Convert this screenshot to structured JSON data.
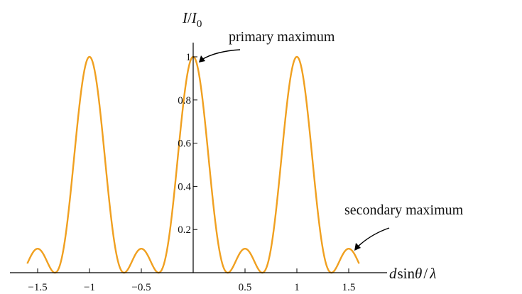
{
  "chart_data": {
    "type": "line",
    "title": "",
    "xlabel": "d sinθ / λ",
    "ylabel": "I/I₀",
    "xlim": [
      -1.62,
      1.62
    ],
    "ylim": [
      0,
      1.05
    ],
    "x_ticks": [
      {
        "value": -1.5,
        "label": "−1.5"
      },
      {
        "value": -1,
        "label": "−1"
      },
      {
        "value": -0.5,
        "label": "−0.5"
      },
      {
        "value": 0.5,
        "label": "0.5"
      },
      {
        "value": 1,
        "label": "1"
      },
      {
        "value": 1.5,
        "label": "1.5"
      }
    ],
    "y_ticks": [
      {
        "value": 0.2,
        "label": "0.2"
      },
      {
        "value": 0.4,
        "label": "0.4"
      },
      {
        "value": 0.6,
        "label": "0.6"
      },
      {
        "value": 0.8,
        "label": "0.8"
      },
      {
        "value": 1,
        "label": "1"
      }
    ],
    "grid": false,
    "series": [
      {
        "function": "three-slit interference: (sin(3πx)/(3 sin(πx)))²",
        "color": "#f0a020",
        "x": [
          -1.6,
          -1.5,
          -1.333,
          -1.0,
          -0.667,
          -0.5,
          -0.333,
          0.0,
          0.333,
          0.5,
          0.667,
          1.0,
          1.333,
          1.5,
          1.6
        ],
        "values": [
          0.041,
          0.111,
          0.0,
          1.0,
          0.0,
          0.111,
          0.0,
          1.0,
          0.0,
          0.111,
          0.0,
          1.0,
          0.0,
          0.111,
          0.041
        ]
      }
    ],
    "annotations": [
      {
        "text": "primary maximum",
        "x": 0.0,
        "y": 1.0
      },
      {
        "text": "secondary maximum",
        "x": 1.5,
        "y": 0.111
      }
    ],
    "x_axis_label": {
      "main": "d",
      "func": "sin",
      "theta": "θ",
      "slash": "/",
      "lambda": "λ"
    },
    "y_axis_label": {
      "main": "I",
      "slash": "/",
      "sub_main": "I",
      "sub": "0"
    }
  }
}
